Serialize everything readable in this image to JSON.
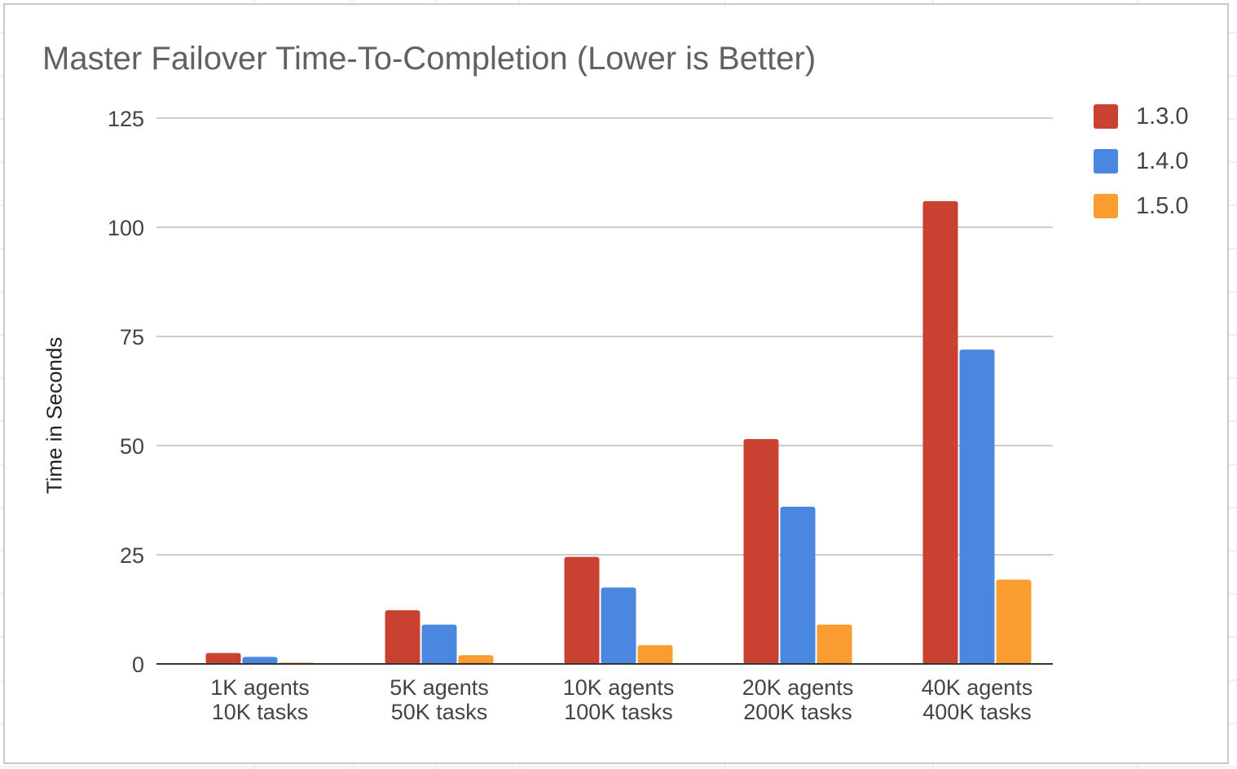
{
  "chart_data": {
    "type": "bar",
    "title": "Master Failover Time-To-Completion (Lower is Better)",
    "xlabel": "",
    "ylabel": "Time in Seconds",
    "ylim": [
      0,
      125
    ],
    "yticks": [
      0,
      25,
      50,
      75,
      100,
      125
    ],
    "categories": [
      [
        "1K agents",
        "10K tasks"
      ],
      [
        "5K agents",
        "50K tasks"
      ],
      [
        "10K agents",
        "100K tasks"
      ],
      [
        "20K agents",
        "200K tasks"
      ],
      [
        "40K agents",
        "400K tasks"
      ]
    ],
    "series": [
      {
        "name": "1.3.0",
        "color": "#c94130",
        "values": [
          2.5,
          12.3,
          24.5,
          51.5,
          106
        ]
      },
      {
        "name": "1.4.0",
        "color": "#4a87e0",
        "values": [
          1.6,
          9.0,
          17.5,
          36.0,
          72.0
        ]
      },
      {
        "name": "1.5.0",
        "color": "#fb9c30",
        "values": [
          0.3,
          2.0,
          4.3,
          9.0,
          19.3
        ]
      }
    ],
    "grid": true,
    "legend_position": "top-right"
  }
}
